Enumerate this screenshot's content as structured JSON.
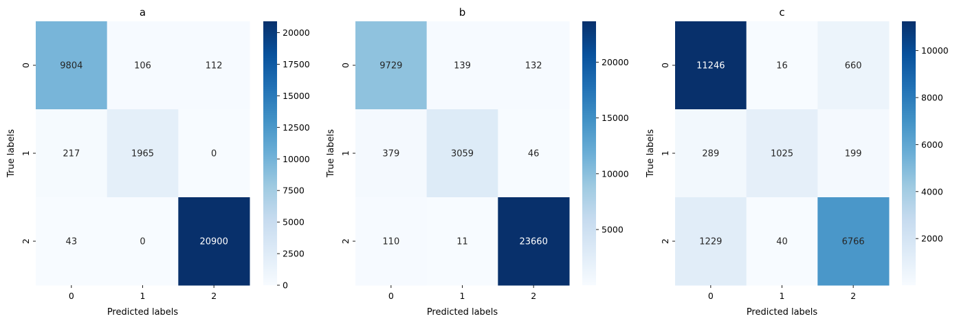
{
  "chart_data": [
    {
      "type": "heatmap",
      "title": "a",
      "xlabel": "Predicted labels",
      "ylabel": "True labels",
      "x_ticks": [
        "0",
        "1",
        "2"
      ],
      "y_ticks": [
        "0",
        "1",
        "2"
      ],
      "matrix": [
        [
          9804,
          106,
          112
        ],
        [
          217,
          1965,
          0
        ],
        [
          43,
          0,
          20900
        ]
      ],
      "colormap": "Blues",
      "vmin": 0,
      "vmax": 20900,
      "colorbar_ticks": [
        0,
        2500,
        5000,
        7500,
        10000,
        12500,
        15000,
        17500,
        20000
      ]
    },
    {
      "type": "heatmap",
      "title": "b",
      "xlabel": "Predicted labels",
      "ylabel": "True labels",
      "x_ticks": [
        "0",
        "1",
        "2"
      ],
      "y_ticks": [
        "0",
        "1",
        "2"
      ],
      "matrix": [
        [
          9729,
          139,
          132
        ],
        [
          379,
          3059,
          46
        ],
        [
          110,
          11,
          23660
        ]
      ],
      "colormap": "Blues",
      "vmin": 11,
      "vmax": 23660,
      "colorbar_ticks": [
        5000,
        10000,
        15000,
        20000
      ]
    },
    {
      "type": "heatmap",
      "title": "c",
      "xlabel": "Predicted labels",
      "ylabel": "True labels",
      "x_ticks": [
        "0",
        "1",
        "2"
      ],
      "y_ticks": [
        "0",
        "1",
        "2"
      ],
      "matrix": [
        [
          11246,
          16,
          660
        ],
        [
          289,
          1025,
          199
        ],
        [
          1229,
          40,
          6766
        ]
      ],
      "colormap": "Blues",
      "vmin": 16,
      "vmax": 11246,
      "colorbar_ticks": [
        2000,
        4000,
        6000,
        8000,
        10000
      ]
    }
  ]
}
